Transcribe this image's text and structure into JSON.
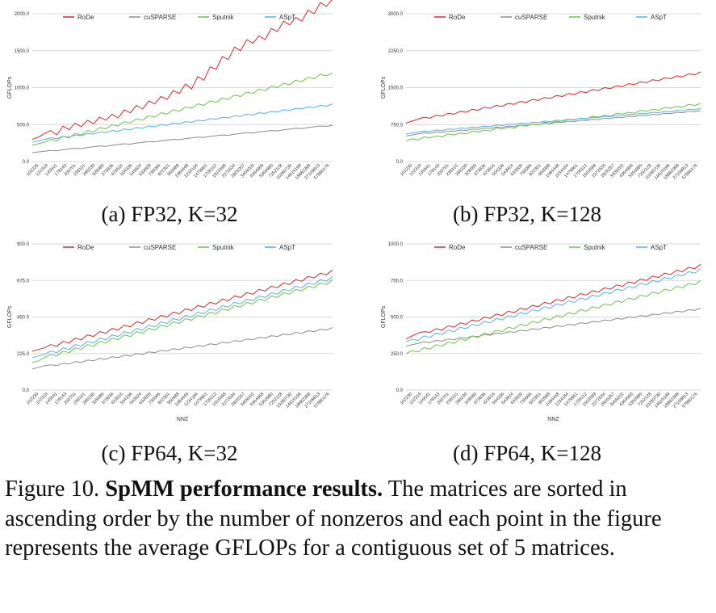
{
  "colors": {
    "RoDe": "#d62728",
    "cuSPARSE": "#8c8c8c",
    "Sputnik": "#6cc24a",
    "ASpT": "#4fb3e8",
    "grid": "#d9d9d9",
    "text": "#333333"
  },
  "charts": [
    {
      "id": "a",
      "subtitle": "(a) FP32, K=32",
      "ylabel": "GFLOPs",
      "xlabel": "",
      "ylim": [
        0,
        2000
      ],
      "yticks": [
        "0.0",
        "500.0",
        "1000.0",
        "1500.0",
        "2000.0"
      ],
      "xticks": [
        "102230",
        "122319",
        "145541",
        "178143",
        "200701",
        "238101",
        "286230",
        "328080",
        "373836",
        "423616",
        "504336",
        "543924",
        "633609",
        "736096",
        "822301",
        "950988",
        "1084448",
        "1234184",
        "1479961",
        "1706112",
        "1916598",
        "2272634",
        "2826257",
        "3409202",
        "4364968",
        "5350980",
        "7252128",
        "10280730",
        "14615199",
        "18882398",
        "27109813",
        "57880176"
      ],
      "series": [
        {
          "name": "RoDe",
          "values": [
            300,
            330,
            380,
            420,
            360,
            480,
            430,
            520,
            470,
            560,
            510,
            600,
            560,
            640,
            590,
            700,
            660,
            760,
            710,
            820,
            780,
            880,
            840,
            960,
            920,
            1050,
            980,
            1150,
            1100,
            1280,
            1250,
            1420,
            1380,
            1550,
            1500,
            1650,
            1600,
            1700,
            1650,
            1800,
            1760,
            1900,
            1850,
            1950,
            1900,
            2050,
            2000,
            2150,
            2100,
            2200
          ]
        },
        {
          "name": "cuSPARSE",
          "values": [
            120,
            130,
            140,
            150,
            145,
            160,
            170,
            180,
            175,
            190,
            200,
            210,
            205,
            220,
            230,
            240,
            235,
            250,
            260,
            270,
            265,
            280,
            290,
            300,
            295,
            310,
            320,
            330,
            325,
            340,
            350,
            360,
            355,
            370,
            380,
            390,
            385,
            400,
            410,
            420,
            415,
            430,
            440,
            450,
            445,
            460,
            470,
            480,
            475,
            490
          ]
        },
        {
          "name": "Sputnik",
          "values": [
            220,
            240,
            260,
            300,
            280,
            340,
            320,
            380,
            360,
            420,
            400,
            460,
            440,
            500,
            480,
            540,
            520,
            580,
            560,
            620,
            600,
            660,
            640,
            700,
            680,
            740,
            720,
            780,
            760,
            820,
            800,
            860,
            840,
            900,
            880,
            940,
            920,
            980,
            960,
            1020,
            1000,
            1060,
            1040,
            1100,
            1080,
            1140,
            1120,
            1180,
            1160,
            1200
          ]
        },
        {
          "name": "ASpT",
          "values": [
            260,
            280,
            300,
            320,
            310,
            340,
            330,
            360,
            350,
            380,
            370,
            400,
            390,
            420,
            410,
            440,
            430,
            460,
            450,
            480,
            470,
            500,
            490,
            520,
            510,
            540,
            530,
            560,
            550,
            580,
            570,
            600,
            590,
            620,
            610,
            640,
            630,
            660,
            650,
            680,
            670,
            700,
            690,
            720,
            710,
            740,
            730,
            760,
            750,
            780
          ]
        }
      ]
    },
    {
      "id": "b",
      "subtitle": "(b) FP32, K=128",
      "ylabel": "GFLOPs",
      "xlabel": "",
      "ylim": [
        0,
        3000
      ],
      "yticks": [
        "0.0",
        "750.0",
        "1500.0",
        "2250.0",
        "3000.0"
      ],
      "xticks": [
        "102230",
        "122319",
        "145541",
        "178143",
        "200701",
        "238101",
        "286230",
        "328080",
        "373836",
        "423616",
        "504336",
        "543924",
        "633609",
        "736096",
        "822301",
        "950988",
        "1084448",
        "1234184",
        "1479961",
        "1706112",
        "1916598",
        "2272634",
        "2826257",
        "3409202",
        "4364968",
        "5350980",
        "7252128",
        "10280730",
        "14615199",
        "18882398",
        "27109813",
        "57880176"
      ],
      "series": [
        {
          "name": "RoDe",
          "values": [
            780,
            820,
            860,
            900,
            880,
            940,
            920,
            980,
            960,
            1020,
            1000,
            1060,
            1040,
            1100,
            1080,
            1140,
            1120,
            1180,
            1160,
            1220,
            1200,
            1260,
            1240,
            1300,
            1280,
            1340,
            1320,
            1380,
            1360,
            1420,
            1400,
            1460,
            1440,
            1500,
            1480,
            1540,
            1520,
            1580,
            1560,
            1620,
            1600,
            1660,
            1640,
            1700,
            1680,
            1740,
            1720,
            1780,
            1760,
            1820
          ]
        },
        {
          "name": "cuSPARSE",
          "values": [
            520,
            540,
            560,
            580,
            570,
            600,
            590,
            620,
            610,
            640,
            630,
            660,
            650,
            680,
            670,
            700,
            690,
            720,
            710,
            740,
            730,
            760,
            750,
            780,
            770,
            800,
            790,
            820,
            810,
            840,
            830,
            860,
            850,
            880,
            870,
            900,
            890,
            920,
            910,
            940,
            930,
            960,
            950,
            980,
            970,
            1000,
            990,
            1020,
            1010,
            1040
          ]
        },
        {
          "name": "Sputnik",
          "values": [
            420,
            460,
            440,
            500,
            480,
            520,
            500,
            560,
            540,
            580,
            560,
            620,
            600,
            640,
            620,
            680,
            660,
            700,
            680,
            740,
            720,
            760,
            740,
            800,
            780,
            820,
            800,
            860,
            840,
            880,
            860,
            920,
            900,
            940,
            920,
            980,
            960,
            1000,
            980,
            1040,
            1020,
            1060,
            1040,
            1100,
            1080,
            1120,
            1100,
            1160,
            1140,
            1180
          ]
        },
        {
          "name": "ASpT",
          "values": [
            560,
            580,
            600,
            620,
            610,
            640,
            630,
            660,
            650,
            680,
            670,
            700,
            690,
            720,
            710,
            740,
            730,
            760,
            750,
            780,
            770,
            800,
            790,
            820,
            810,
            840,
            830,
            860,
            850,
            880,
            870,
            900,
            890,
            920,
            910,
            940,
            930,
            960,
            950,
            980,
            970,
            1000,
            990,
            1020,
            1010,
            1040,
            1030,
            1060,
            1050,
            1080
          ]
        }
      ]
    },
    {
      "id": "c",
      "subtitle": "(c) FP64, K=32",
      "ylabel": "GFLOPs",
      "xlabel": "NNZ",
      "ylim": [
        0,
        900
      ],
      "yticks": [
        "0.0",
        "225.0",
        "450.0",
        "675.0",
        "900.0"
      ],
      "xticks": [
        "102230",
        "122319",
        "145541",
        "178143",
        "200701",
        "238101",
        "286230",
        "328080",
        "373836",
        "423616",
        "504336",
        "543924",
        "633609",
        "736096",
        "822301",
        "950988",
        "1084448",
        "1234184",
        "1479961",
        "1706112",
        "1916598",
        "2272634",
        "2826257",
        "3409202",
        "4364968",
        "5350980",
        "7252128",
        "10280730",
        "14615199",
        "18882398",
        "27109813",
        "57880176"
      ],
      "series": [
        {
          "name": "RoDe",
          "values": [
            240,
            250,
            260,
            280,
            270,
            300,
            290,
            320,
            310,
            340,
            330,
            360,
            350,
            380,
            370,
            400,
            390,
            420,
            410,
            440,
            430,
            460,
            450,
            480,
            470,
            500,
            490,
            520,
            510,
            540,
            530,
            560,
            550,
            580,
            570,
            600,
            590,
            620,
            610,
            640,
            630,
            660,
            650,
            680,
            670,
            700,
            690,
            720,
            710,
            740
          ]
        },
        {
          "name": "cuSPARSE",
          "values": [
            130,
            140,
            150,
            155,
            150,
            165,
            160,
            175,
            170,
            185,
            180,
            195,
            190,
            205,
            200,
            215,
            210,
            225,
            220,
            235,
            230,
            245,
            240,
            255,
            250,
            265,
            260,
            275,
            270,
            285,
            280,
            295,
            290,
            305,
            300,
            315,
            310,
            325,
            320,
            335,
            330,
            345,
            340,
            355,
            350,
            365,
            360,
            375,
            370,
            385
          ]
        },
        {
          "name": "Sputnik",
          "values": [
            170,
            180,
            200,
            220,
            210,
            240,
            230,
            260,
            250,
            280,
            270,
            300,
            290,
            320,
            310,
            340,
            330,
            360,
            350,
            380,
            370,
            400,
            390,
            420,
            410,
            440,
            430,
            460,
            450,
            480,
            470,
            500,
            490,
            520,
            510,
            540,
            530,
            560,
            550,
            580,
            570,
            600,
            590,
            620,
            610,
            640,
            630,
            660,
            650,
            680
          ]
        },
        {
          "name": "ASpT",
          "values": [
            200,
            210,
            220,
            240,
            230,
            260,
            250,
            280,
            270,
            300,
            290,
            320,
            310,
            340,
            330,
            360,
            350,
            380,
            370,
            400,
            390,
            420,
            410,
            440,
            430,
            460,
            450,
            480,
            470,
            500,
            490,
            520,
            510,
            540,
            530,
            560,
            550,
            580,
            570,
            600,
            590,
            620,
            610,
            640,
            630,
            660,
            650,
            680,
            670,
            700
          ]
        }
      ]
    },
    {
      "id": "d",
      "subtitle": "(d) FP64, K=128",
      "ylabel": "GFLOPs",
      "xlabel": "NNZ",
      "ylim": [
        0,
        1000
      ],
      "yticks": [
        "0.0",
        "250.0",
        "500.0",
        "750.0",
        "1000.0"
      ],
      "xticks": [
        "102230",
        "122319",
        "145541",
        "178143",
        "200701",
        "238101",
        "286230",
        "328080",
        "373836",
        "423616",
        "504336",
        "543924",
        "633609",
        "736096",
        "822301",
        "950988",
        "1084448",
        "1234184",
        "1479961",
        "1706112",
        "1916598",
        "2272634",
        "2826257",
        "3409202",
        "4364968",
        "5350980",
        "7252128",
        "10280730",
        "14615199",
        "18882398",
        "27109813",
        "57880176"
      ],
      "series": [
        {
          "name": "RoDe",
          "values": [
            350,
            370,
            390,
            400,
            395,
            420,
            410,
            440,
            430,
            460,
            450,
            480,
            470,
            500,
            490,
            520,
            510,
            540,
            530,
            560,
            550,
            580,
            570,
            600,
            590,
            620,
            610,
            640,
            630,
            660,
            650,
            680,
            670,
            700,
            690,
            720,
            710,
            740,
            730,
            760,
            750,
            780,
            770,
            800,
            790,
            820,
            810,
            840,
            830,
            860
          ]
        },
        {
          "name": "cuSPARSE",
          "values": [
            300,
            310,
            320,
            330,
            325,
            340,
            335,
            350,
            345,
            360,
            355,
            370,
            365,
            380,
            375,
            390,
            385,
            400,
            395,
            410,
            405,
            420,
            415,
            430,
            425,
            440,
            435,
            450,
            445,
            460,
            455,
            470,
            465,
            480,
            475,
            490,
            485,
            500,
            495,
            510,
            505,
            520,
            515,
            530,
            525,
            540,
            535,
            550,
            545,
            560
          ]
        },
        {
          "name": "Sputnik",
          "values": [
            250,
            270,
            260,
            290,
            280,
            310,
            300,
            330,
            320,
            350,
            340,
            370,
            360,
            390,
            380,
            410,
            400,
            430,
            420,
            450,
            440,
            470,
            460,
            490,
            480,
            510,
            500,
            530,
            520,
            550,
            540,
            570,
            560,
            590,
            580,
            610,
            600,
            630,
            620,
            650,
            640,
            670,
            660,
            690,
            680,
            710,
            700,
            730,
            720,
            750
          ]
        },
        {
          "name": "ASpT",
          "values": [
            330,
            350,
            340,
            370,
            360,
            390,
            380,
            410,
            400,
            430,
            420,
            450,
            440,
            470,
            460,
            490,
            480,
            510,
            500,
            530,
            520,
            550,
            540,
            570,
            560,
            590,
            580,
            610,
            600,
            630,
            620,
            650,
            640,
            670,
            660,
            690,
            680,
            710,
            700,
            730,
            720,
            750,
            740,
            770,
            760,
            790,
            780,
            810,
            800,
            830
          ]
        }
      ]
    }
  ],
  "caption": {
    "label": "Figure 10. ",
    "bold": "SpMM performance results.",
    "text": " The matrices are sorted in ascending order by the number of nonzeros and each point in the figure represents the average GFLOPs for a contiguous set of 5 matrices."
  }
}
